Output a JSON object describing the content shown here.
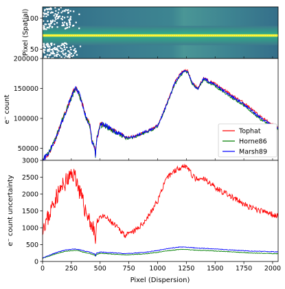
{
  "chart_data": [
    {
      "type": "heatmap",
      "ylabel": "Pixel (Spatial)",
      "xlim": [
        0,
        2048
      ],
      "ylim": [
        35,
        118
      ],
      "yticks": [
        50,
        100
      ],
      "trace_center": 72,
      "note_colors": {
        "background": "#3a6f88",
        "bright_band": "#ffff33",
        "trace_dots": "#ffff00",
        "masked": "#ffffff"
      }
    },
    {
      "type": "line",
      "ylabel": "e⁻ count",
      "xlim": [
        0,
        2048
      ],
      "ylim": [
        30000,
        200000
      ],
      "yticks": [
        50000,
        100000,
        150000
      ],
      "ytick_labels": [
        "50000",
        "100000",
        "150000"
      ],
      "legend_position": "lower right",
      "x": [
        0,
        50,
        100,
        150,
        200,
        250,
        270,
        290,
        320,
        350,
        380,
        410,
        430,
        450,
        460,
        470,
        500,
        550,
        600,
        650,
        700,
        720,
        750,
        800,
        850,
        900,
        950,
        1000,
        1050,
        1100,
        1150,
        1200,
        1230,
        1260,
        1300,
        1350,
        1400,
        1450,
        1500,
        1550,
        1600,
        1650,
        1700,
        1750,
        1800,
        1850,
        1900,
        1950,
        2000,
        2048
      ],
      "series": [
        {
          "name": "Tophat",
          "color": "#ff0000",
          "values": [
            30000,
            40000,
            60000,
            85000,
            110000,
            135000,
            145000,
            152000,
            140000,
            120000,
            100000,
            90000,
            60000,
            55000,
            38000,
            65000,
            90000,
            88000,
            82000,
            76000,
            72000,
            68000,
            68000,
            70000,
            74000,
            78000,
            82000,
            88000,
            110000,
            135000,
            160000,
            175000,
            180000,
            180000,
            160000,
            150000,
            168000,
            162000,
            158000,
            150000,
            145000,
            138000,
            132000,
            126000,
            118000,
            110000,
            102000,
            96000,
            90000,
            86000
          ]
        },
        {
          "name": "Horne86",
          "color": "#007f00",
          "values": [
            31000,
            41000,
            61000,
            86000,
            111000,
            134000,
            144000,
            150000,
            139000,
            119000,
            99000,
            89000,
            60000,
            55000,
            38000,
            64000,
            89000,
            87000,
            81000,
            75000,
            71000,
            67000,
            67000,
            69000,
            73000,
            77000,
            81000,
            87000,
            108000,
            133000,
            157000,
            172000,
            177000,
            178000,
            158000,
            148000,
            165000,
            159000,
            155000,
            147000,
            141000,
            134000,
            128000,
            122000,
            114000,
            106000,
            98000,
            92000,
            87000,
            83000
          ]
        },
        {
          "name": "Marsh89",
          "color": "#0000ff",
          "values": [
            30500,
            40500,
            60500,
            85500,
            110500,
            135000,
            145000,
            151000,
            140000,
            120000,
            100000,
            90000,
            60000,
            55000,
            38000,
            65000,
            90000,
            88000,
            82000,
            76000,
            72000,
            68000,
            68000,
            70000,
            74000,
            78000,
            82000,
            88000,
            109000,
            134000,
            159000,
            174000,
            179000,
            179000,
            159000,
            149000,
            167000,
            161000,
            157000,
            149000,
            143000,
            136000,
            130000,
            124000,
            116000,
            108000,
            100000,
            94000,
            88000,
            85000
          ]
        }
      ]
    },
    {
      "type": "line",
      "xlabel": "Pixel (Dispersion)",
      "ylabel": "e⁻ count uncertainty",
      "xlim": [
        0,
        2048
      ],
      "ylim": [
        0,
        3000
      ],
      "xticks": [
        0,
        250,
        500,
        750,
        1000,
        1250,
        1500,
        1750,
        2000
      ],
      "yticks": [
        0,
        500,
        1000,
        1500,
        2000,
        2500,
        3000
      ],
      "ytick_labels": [
        "0",
        "500",
        "1000",
        "1500",
        "2000",
        "2500",
        "3000"
      ],
      "x": [
        0,
        50,
        100,
        150,
        200,
        250,
        270,
        290,
        320,
        350,
        380,
        410,
        430,
        450,
        460,
        470,
        500,
        550,
        600,
        650,
        700,
        720,
        750,
        800,
        850,
        900,
        950,
        1000,
        1050,
        1100,
        1150,
        1200,
        1230,
        1260,
        1300,
        1350,
        1400,
        1450,
        1500,
        1550,
        1600,
        1650,
        1700,
        1750,
        1800,
        1850,
        1900,
        1950,
        2000,
        2048
      ],
      "series": [
        {
          "name": "Tophat",
          "color": "#ff0000",
          "values": [
            1050,
            1300,
            1800,
            2100,
            2350,
            2550,
            2600,
            2500,
            2100,
            1750,
            1450,
            1250,
            1000,
            900,
            550,
            1150,
            1350,
            1300,
            1150,
            1000,
            850,
            780,
            800,
            900,
            1050,
            1250,
            1500,
            1800,
            2250,
            2550,
            2700,
            2800,
            2850,
            2800,
            2550,
            2400,
            2450,
            2350,
            2200,
            2100,
            2000,
            1900,
            1800,
            1700,
            1600,
            1550,
            1500,
            1450,
            1400,
            1350
          ]
        },
        {
          "name": "Horne86",
          "color": "#007f00",
          "values": [
            100,
            150,
            210,
            260,
            300,
            320,
            330,
            330,
            310,
            280,
            260,
            240,
            210,
            200,
            150,
            210,
            240,
            230,
            220,
            210,
            200,
            195,
            200,
            210,
            220,
            230,
            250,
            270,
            300,
            320,
            340,
            360,
            360,
            355,
            340,
            330,
            330,
            320,
            310,
            300,
            295,
            285,
            275,
            265,
            255,
            250,
            245,
            240,
            235,
            230
          ]
        },
        {
          "name": "Marsh89",
          "color": "#0000ff",
          "values": [
            110,
            170,
            240,
            300,
            340,
            360,
            370,
            370,
            350,
            320,
            300,
            280,
            250,
            240,
            180,
            250,
            280,
            270,
            260,
            250,
            240,
            235,
            240,
            250,
            260,
            275,
            300,
            325,
            360,
            390,
            410,
            430,
            430,
            425,
            410,
            395,
            390,
            380,
            370,
            360,
            350,
            340,
            330,
            320,
            310,
            305,
            300,
            295,
            290,
            285
          ]
        }
      ]
    }
  ]
}
